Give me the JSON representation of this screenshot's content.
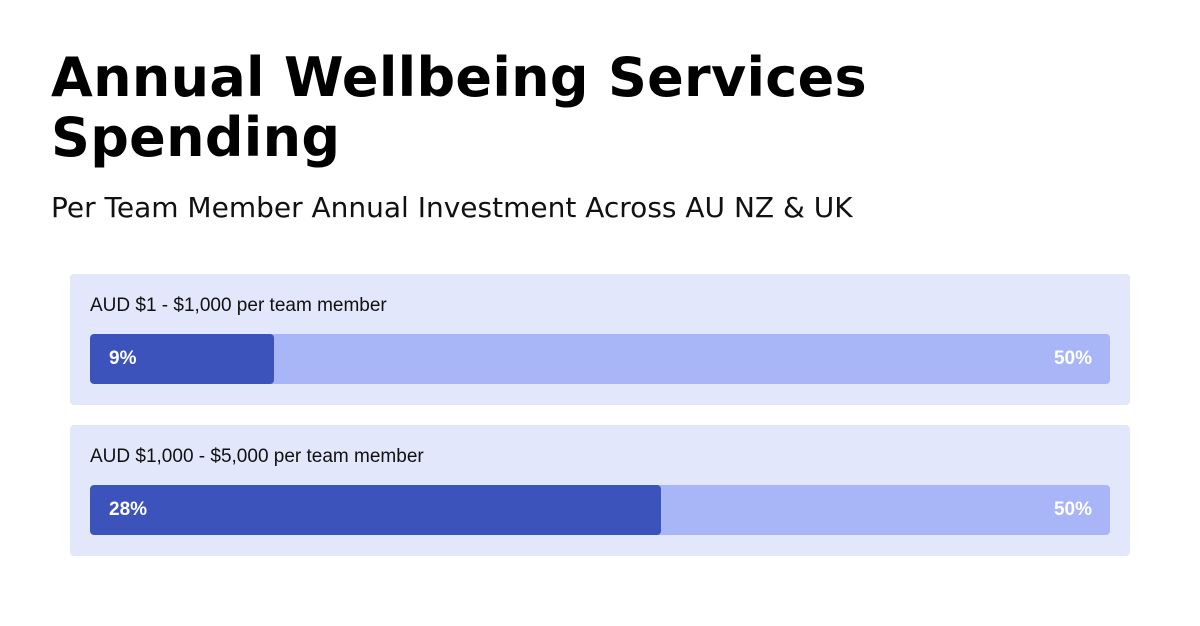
{
  "title": "Annual Wellbeing Services Spending",
  "subtitle": "Per Team Member Annual Investment Across AU NZ & UK",
  "colors": {
    "card_background": "#e2e7fc",
    "bar_track": "#a8b6f7",
    "bar_fill": "#3c53bb"
  },
  "chart_data": {
    "type": "bar",
    "orientation": "horizontal",
    "title": "Annual Wellbeing Services Spending",
    "subtitle": "Per Team Member Annual Investment Across AU NZ & UK",
    "max_value": 50,
    "max_label": "50%",
    "bars": [
      {
        "label": "AUD $1 - $1,000 per team member",
        "value": 9,
        "value_label": "9%"
      },
      {
        "label": "AUD $1,000 - $5,000 per team member",
        "value": 28,
        "value_label": "28%"
      }
    ]
  }
}
